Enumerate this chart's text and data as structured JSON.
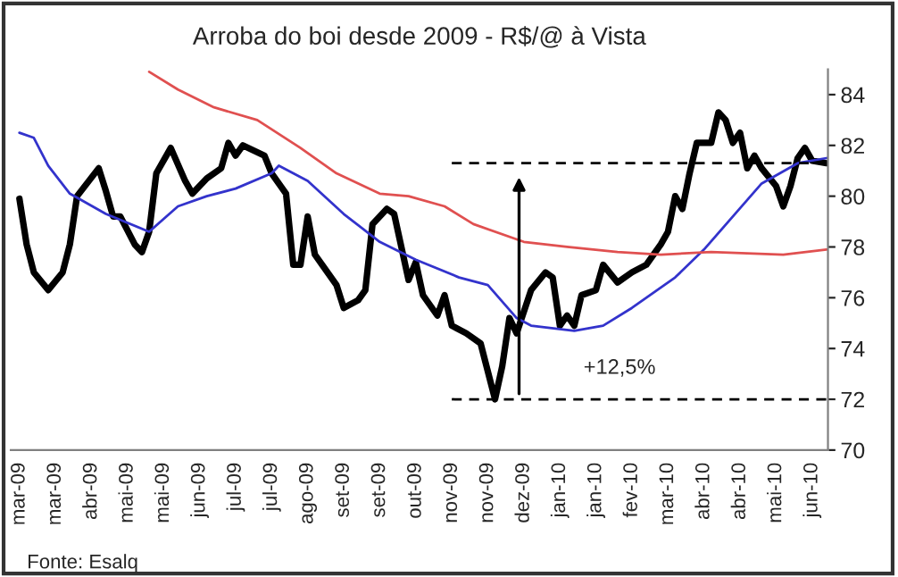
{
  "chart_data": {
    "type": "line",
    "title": "Arroba do boi desde 2009 - R$/@ à Vista",
    "categories": [
      "mar-09",
      null,
      null,
      null,
      null,
      "mar-09",
      null,
      null,
      null,
      null,
      "abr-09",
      null,
      null,
      null,
      null,
      "mai-09",
      null,
      null,
      null,
      null,
      "mai-09",
      null,
      null,
      null,
      null,
      "jun-09",
      null,
      null,
      null,
      null,
      "jul-09",
      null,
      null,
      null,
      null,
      "jul-09",
      null,
      null,
      null,
      null,
      "ago-09",
      null,
      null,
      null,
      null,
      "set-09",
      null,
      null,
      null,
      null,
      "set-09",
      null,
      null,
      null,
      null,
      "out-09",
      null,
      null,
      null,
      null,
      "nov-09",
      null,
      null,
      null,
      null,
      "nov-09",
      null,
      null,
      null,
      null,
      "dez-09",
      null,
      null,
      null,
      null,
      "jan-10",
      null,
      null,
      null,
      null,
      "jan-10",
      null,
      null,
      null,
      null,
      "fev-10",
      null,
      null,
      null,
      null,
      "mar-10",
      null,
      null,
      null,
      null,
      "abr-10",
      null,
      null,
      null,
      null,
      "abr-10",
      null,
      null,
      null,
      null,
      "mai-10",
      null,
      null,
      null,
      null,
      "jun-10",
      null,
      null
    ],
    "series": [
      {
        "color": "#000000",
        "values": [
          79.9,
          78.1,
          77.0,
          null,
          76.3,
          null,
          77.0,
          78.1,
          80.0,
          null,
          null,
          81.1,
          80.2,
          79.2,
          79.2,
          null,
          78.1,
          77.8,
          78.6,
          80.9,
          null,
          81.9,
          null,
          80.6,
          80.1,
          null,
          80.7,
          null,
          81.1,
          82.1,
          81.6,
          82.0,
          null,
          null,
          81.6,
          80.9,
          null,
          80.1,
          77.3,
          77.3,
          79.2,
          77.7,
          77.3,
          null,
          76.5,
          75.6,
          null,
          75.9,
          76.3,
          78.9,
          null,
          79.5,
          79.3,
          null,
          76.7,
          77.4,
          76.1,
          null,
          75.3,
          76.1,
          74.9,
          null,
          74.6,
          null,
          74.2,
          null,
          72.0,
          73.3,
          75.2,
          74.6,
          null,
          76.3,
          null,
          77.0,
          76.8,
          74.9,
          75.3,
          74.9,
          76.1,
          null,
          76.3,
          77.3,
          null,
          76.6,
          null,
          77.0,
          null,
          77.3,
          null,
          78.1,
          78.6,
          80.0,
          79.5,
          80.9,
          82.1,
          null,
          82.1,
          83.3,
          83.0,
          82.1,
          82.5,
          81.1,
          81.6,
          81.1,
          null,
          80.4,
          79.6,
          80.4,
          81.5,
          81.9,
          81.4,
          null,
          81.3
        ]
      },
      {
        "color": "#3333cc",
        "values": [
          82.5,
          null,
          82.3,
          null,
          81.2,
          null,
          null,
          80.1,
          null,
          null,
          null,
          null,
          79.3,
          null,
          null,
          null,
          null,
          null,
          78.6,
          null,
          null,
          null,
          79.6,
          null,
          null,
          null,
          80.0,
          null,
          null,
          null,
          80.3,
          null,
          null,
          null,
          null,
          80.9,
          81.2,
          null,
          null,
          null,
          80.6,
          null,
          null,
          null,
          null,
          79.3,
          null,
          null,
          null,
          null,
          78.2,
          null,
          null,
          null,
          null,
          77.5,
          null,
          null,
          null,
          null,
          null,
          76.8,
          null,
          null,
          null,
          76.5,
          null,
          null,
          null,
          75.2,
          null,
          74.9,
          null,
          null,
          null,
          null,
          null,
          74.7,
          null,
          null,
          null,
          74.9,
          null,
          null,
          null,
          75.6,
          null,
          null,
          null,
          null,
          null,
          76.8,
          null,
          null,
          null,
          77.9,
          null,
          null,
          null,
          79.2,
          null,
          null,
          null,
          80.5,
          null,
          null,
          null,
          null,
          81.3,
          null,
          null,
          null,
          81.5
        ]
      },
      {
        "color": "#e05050",
        "values": [
          null,
          null,
          null,
          null,
          null,
          null,
          null,
          null,
          null,
          null,
          null,
          null,
          null,
          null,
          null,
          null,
          null,
          null,
          84.9,
          null,
          null,
          null,
          84.2,
          null,
          null,
          null,
          null,
          83.5,
          null,
          null,
          null,
          null,
          null,
          83.0,
          null,
          null,
          null,
          null,
          null,
          81.9,
          null,
          null,
          null,
          null,
          80.9,
          null,
          null,
          null,
          null,
          null,
          80.1,
          null,
          null,
          null,
          80.0,
          null,
          null,
          null,
          null,
          79.6,
          null,
          null,
          null,
          78.9,
          null,
          null,
          null,
          null,
          null,
          null,
          78.2,
          null,
          null,
          null,
          null,
          null,
          78.0,
          null,
          null,
          null,
          null,
          null,
          null,
          77.8,
          null,
          null,
          null,
          null,
          null,
          77.7,
          null,
          null,
          null,
          null,
          null,
          null,
          77.8,
          null,
          null,
          null,
          null,
          null,
          null,
          null,
          null,
          null,
          77.7,
          null,
          null,
          null,
          null,
          null,
          77.9
        ]
      },
      {
        "color": "#000000",
        "line_style": "dashed",
        "values": [
          null,
          null,
          null,
          null,
          null,
          null,
          null,
          null,
          null,
          null,
          null,
          null,
          null,
          null,
          null,
          null,
          null,
          null,
          null,
          null,
          null,
          null,
          null,
          null,
          null,
          null,
          null,
          null,
          null,
          null,
          null,
          null,
          null,
          null,
          null,
          null,
          null,
          null,
          null,
          null,
          null,
          null,
          null,
          null,
          null,
          null,
          null,
          null,
          null,
          null,
          null,
          null,
          null,
          null,
          null,
          null,
          null,
          null,
          null,
          null,
          81.3,
          null,
          null,
          null,
          null,
          null,
          null,
          null,
          null,
          null,
          null,
          null,
          null,
          null,
          null,
          null,
          null,
          null,
          null,
          null,
          null,
          null,
          null,
          null,
          null,
          null,
          null,
          null,
          null,
          null,
          null,
          null,
          null,
          null,
          null,
          null,
          null,
          null,
          null,
          null,
          null,
          null,
          null,
          null,
          null,
          null,
          null,
          null,
          null,
          null,
          null,
          null,
          81.3
        ]
      },
      {
        "color": "#000000",
        "line_style": "dashed",
        "values": [
          null,
          null,
          null,
          null,
          null,
          null,
          null,
          null,
          null,
          null,
          null,
          null,
          null,
          null,
          null,
          null,
          null,
          null,
          null,
          null,
          null,
          null,
          null,
          null,
          null,
          null,
          null,
          null,
          null,
          null,
          null,
          null,
          null,
          null,
          null,
          null,
          null,
          null,
          null,
          null,
          null,
          null,
          null,
          null,
          null,
          null,
          null,
          null,
          null,
          null,
          null,
          null,
          null,
          null,
          null,
          null,
          null,
          null,
          null,
          null,
          72,
          null,
          null,
          null,
          null,
          null,
          null,
          null,
          null,
          null,
          null,
          null,
          null,
          null,
          null,
          null,
          null,
          null,
          null,
          null,
          null,
          null,
          null,
          null,
          null,
          null,
          null,
          null,
          null,
          null,
          null,
          null,
          null,
          null,
          null,
          null,
          null,
          null,
          null,
          null,
          null,
          null,
          null,
          null,
          null,
          null,
          null,
          null,
          null,
          null,
          null,
          null,
          72
        ]
      }
    ],
    "ylim": [
      70,
      85
    ],
    "yticks": [
      70,
      72,
      74,
      76,
      78,
      80,
      82,
      84
    ],
    "grid": false,
    "legend": false,
    "annotations": [
      "+12,5%",
      "Fonte: Esalq"
    ]
  }
}
